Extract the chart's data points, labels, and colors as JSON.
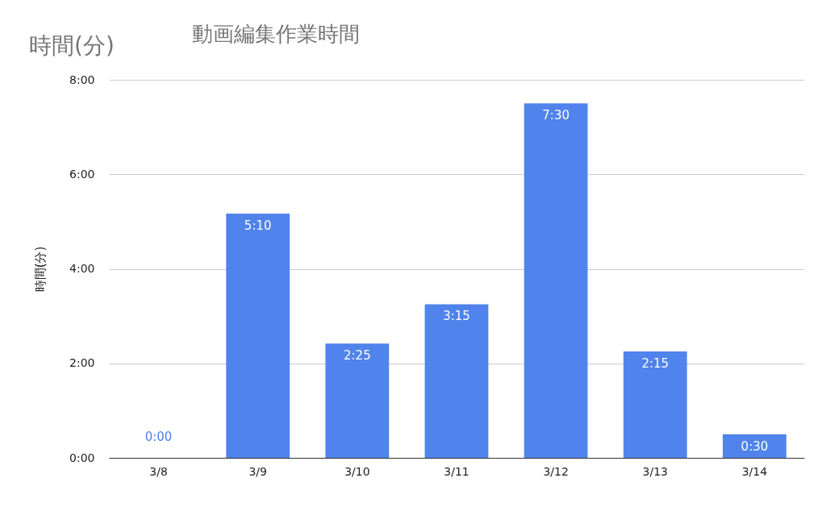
{
  "chart_data": {
    "type": "bar",
    "title": "動画編集作業時間",
    "ylabel": "時間(分)",
    "annotations": [
      "時間(分)"
    ],
    "categories": [
      "3/8",
      "3/9",
      "3/10",
      "3/11",
      "3/12",
      "3/13",
      "3/14"
    ],
    "values": [
      0,
      5.1667,
      2.4167,
      3.25,
      7.5,
      2.25,
      0.5
    ],
    "value_labels": [
      "0:00",
      "5:10",
      "2:25",
      "3:15",
      "7:30",
      "2:15",
      "0:30"
    ],
    "color": "#5083ec",
    "ylim": [
      0,
      8
    ],
    "yticks": [
      {
        "value": 0,
        "label": "0:00"
      },
      {
        "value": 2,
        "label": "2:00"
      },
      {
        "value": 4,
        "label": "4:00"
      },
      {
        "value": 6,
        "label": "6:00"
      },
      {
        "value": 8,
        "label": "8:00"
      }
    ],
    "grid": "y"
  }
}
